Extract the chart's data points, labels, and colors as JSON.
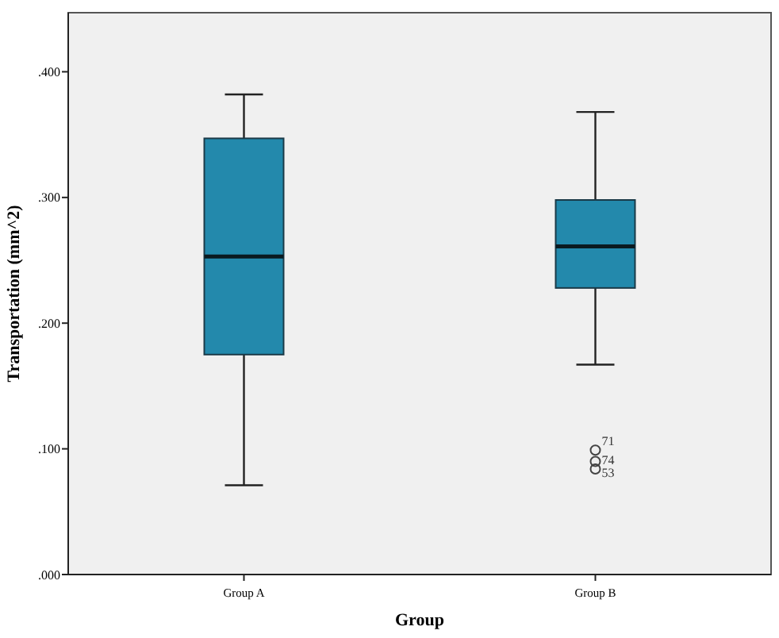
{
  "chart_data": {
    "type": "box",
    "xlabel": "Group",
    "ylabel": "Transportation (mm^2)",
    "categories": [
      "Group A",
      "Group B"
    ],
    "color": "#2389ac",
    "boxes": [
      {
        "low": 0.071,
        "q1": 0.175,
        "median": 0.253,
        "q3": 0.347,
        "high": 0.382
      },
      {
        "low": 0.167,
        "q1": 0.228,
        "median": 0.261,
        "q3": 0.298,
        "high": 0.368,
        "outliers": [
          0.099,
          0.09,
          0.084
        ]
      }
    ],
    "annotations": [
      "71",
      "74",
      "53"
    ],
    "ylim": [
      0,
      0.447
    ],
    "yticks": [
      {
        "value": 0,
        "label": ".000"
      },
      {
        "value": 0.1,
        "label": ".100"
      },
      {
        "value": 0.2,
        "label": ".200"
      },
      {
        "value": 0.3,
        "label": ".300"
      },
      {
        "value": 0.4,
        "label": ".400"
      }
    ],
    "grid": false
  }
}
